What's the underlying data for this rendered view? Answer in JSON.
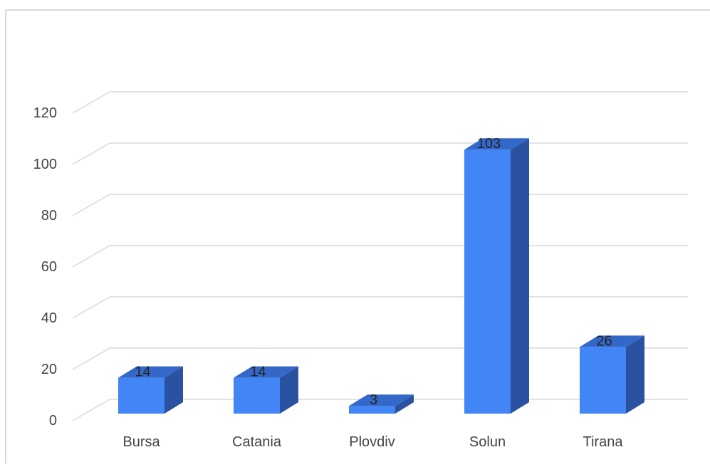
{
  "chart_data": {
    "type": "bar",
    "style": "3d-column",
    "categories": [
      "Bursa",
      "Catania",
      "Plovdiv",
      "Solun",
      "Tirana"
    ],
    "series": [
      {
        "values": [
          14,
          14,
          3,
          103,
          26
        ]
      }
    ],
    "data_labels": [
      "14",
      "14",
      "3",
      "103",
      "26"
    ],
    "y_ticks": [
      "0",
      "20",
      "40",
      "60",
      "80",
      "100",
      "120"
    ],
    "ylim": [
      0,
      120
    ],
    "grid": true,
    "legend": "none",
    "title": "",
    "xlabel": "",
    "ylabel": "",
    "colors": {
      "bar_front": "#4285f4",
      "bar_top": "#3468c8",
      "bar_side": "#2a52a0",
      "grid": "#d9d9d9",
      "frame": "#d9d9d9",
      "text": "#444444"
    }
  }
}
